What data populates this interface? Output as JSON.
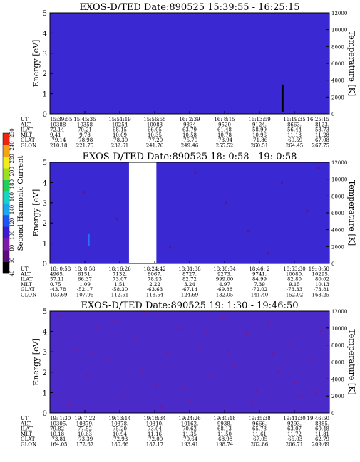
{
  "chart_data": [
    {
      "type": "heatmap",
      "title": "EXOS-D/TED   Date:890525  15:39:55 - 16:25:15",
      "ylabel": "Energy [eV]",
      "ylabel_right": "Temperature [K]",
      "ylim": [
        0,
        5
      ],
      "ylim_right": [
        0,
        12000
      ],
      "yticks": [
        "0",
        "1",
        "2",
        "3",
        "4",
        "5"
      ],
      "yticks_right": [
        "0",
        "2000",
        "4000",
        "6000",
        "8000",
        "10000",
        "12000"
      ],
      "background_color": "#3a28d2",
      "speckle_color": "#5a1690",
      "speckles": [],
      "features": [
        {
          "x0": 0.829,
          "x1": 0.836,
          "y0": 0.1,
          "y1": 1.45,
          "color": "#000000"
        }
      ],
      "gap": null,
      "orbit_table": {
        "labels": [
          "UT",
          "ALT",
          "ILAT",
          "MLT",
          "GLAT",
          "GLON"
        ],
        "rows": [
          [
            "15:39:55",
            "15:45:35",
            "15:51:19",
            "15:56:55",
            "16: 2:39",
            "16: 8:15",
            "16:13:59",
            "16:19:35",
            "16:25:15"
          ],
          [
            "10388",
            "10358",
            "10254",
            "10083",
            "9834",
            "9520",
            "9124.",
            "8663.",
            "8123."
          ],
          [
            "72.14",
            "70.21",
            "68.15",
            "66.05",
            "63.79",
            "61.48",
            "58.99",
            "56.44",
            "53.73"
          ],
          [
            "9.41",
            "9.78",
            "10.09",
            "10.35",
            "10.58",
            "10.78",
            "10.96",
            "11.13",
            "11.28"
          ],
          [
            "-79.14",
            "-78.98",
            "-78.30",
            "-77.20",
            "-75.70",
            "-73.94",
            "-71.86",
            "-69.59",
            "-67.08"
          ],
          [
            "210.18",
            "221.75",
            "232.61",
            "241.76",
            "249.46",
            "255.52",
            "260.51",
            "264.45",
            "267.75"
          ]
        ]
      }
    },
    {
      "type": "heatmap",
      "title": "EXOS-D/TED   Date:890525  18: 0:58 - 19: 0:58",
      "ylabel": "Energy [eV]",
      "ylabel_right": "Temperature [K]",
      "ylim": [
        0,
        5
      ],
      "ylim_right": [
        0,
        12000
      ],
      "yticks": [
        "0",
        "1",
        "2",
        "3",
        "4",
        "5"
      ],
      "yticks_right": [
        "0",
        "2000",
        "4000",
        "6000",
        "8000",
        "10000",
        "12000"
      ],
      "background_color": "#3a28d2",
      "speckle_color": "#5a1690",
      "speckles": [
        [
          0.12,
          3.5
        ],
        [
          0.24,
          2.2
        ],
        [
          0.52,
          4.5
        ],
        [
          0.63,
          3.0
        ],
        [
          0.71,
          1.6
        ],
        [
          0.83,
          4.0
        ],
        [
          0.92,
          2.6
        ],
        [
          0.43,
          0.8
        ],
        [
          0.78,
          0.5
        ],
        [
          0.96,
          4.7
        ]
      ],
      "features": [
        {
          "x0": 0.137,
          "x1": 0.142,
          "y0": 0.85,
          "y1": 1.45,
          "color": "#2f6cff"
        }
      ],
      "gap": {
        "x0": 0.283,
        "x1": 0.381
      },
      "orbit_table": {
        "labels": [
          "UT",
          "ALT",
          "ILAT",
          "MLT",
          "GLAT",
          "GLON"
        ],
        "rows": [
          [
            "18: 0:58",
            "18: 8:58",
            "18:16:26",
            "18:24:42",
            "18:31:38",
            "18:38:54",
            "18:46: 2",
            "18:53:30",
            "19: 0:58"
          ],
          [
            "4965.",
            "6151.",
            "7132.",
            "8067.",
            "8727.",
            "9273.",
            "9741.",
            "10080.",
            "10295."
          ],
          [
            "57.11",
            "66.37",
            "73.07",
            "78.93",
            "82.72",
            "999.00",
            "84.99",
            "82.80",
            "80.02"
          ],
          [
            "0.75",
            "1.09",
            "1.51",
            "2.22",
            "3.24",
            "4.97",
            "7.39",
            "9.15",
            "10.13"
          ],
          [
            "-43.78",
            "-52.17",
            "-58.30",
            "-63.63",
            "-67.14",
            "-69.88",
            "-72.02",
            "-73.33",
            "-73.81"
          ],
          [
            "103.69",
            "107.96",
            "112.51",
            "118.54",
            "124.69",
            "132.05",
            "141.40",
            "152.02",
            "163.25"
          ]
        ]
      },
      "colorbar": {
        "label": "Second Harmonic Current",
        "ticks": [
          "40",
          "60",
          "80",
          "100",
          "120",
          "140",
          "160",
          "180",
          "200",
          "220",
          "240",
          "250"
        ],
        "colors": [
          "#000000",
          "#5a0a7a",
          "#7e1aa8",
          "#3c1ccf",
          "#1d56f5",
          "#1aa7f0",
          "#16d4c4",
          "#1ecf5a",
          "#9ae01c",
          "#f2ec1a",
          "#f5a316",
          "#ee2410"
        ]
      }
    },
    {
      "type": "heatmap",
      "title": "EXOS-D/TED   Date:890525  19: 1:30 - 19:46:50",
      "ylabel": "Energy [eV]",
      "ylabel_right": "Temperature [K]",
      "ylim": [
        0,
        5
      ],
      "ylim_right": [
        0,
        12000
      ],
      "yticks": [
        "0",
        "1",
        "2",
        "3",
        "4",
        "5"
      ],
      "yticks_right": [
        "0",
        "2000",
        "4000",
        "6000",
        "8000",
        "10000",
        "12000"
      ],
      "background_color": "#4a2ac8",
      "speckle_color": "#7a1a8c",
      "speckles": [
        [
          0.04,
          4.8
        ],
        [
          0.09,
          3.1
        ],
        [
          0.13,
          1.9
        ],
        [
          0.17,
          4.2
        ],
        [
          0.21,
          2.6
        ],
        [
          0.26,
          0.9
        ],
        [
          0.3,
          3.7
        ],
        [
          0.34,
          4.9
        ],
        [
          0.38,
          1.4
        ],
        [
          0.42,
          2.9
        ],
        [
          0.46,
          4.1
        ],
        [
          0.5,
          0.6
        ],
        [
          0.54,
          3.3
        ],
        [
          0.58,
          1.8
        ],
        [
          0.62,
          4.6
        ],
        [
          0.66,
          2.3
        ],
        [
          0.7,
          3.9
        ],
        [
          0.74,
          1.1
        ],
        [
          0.78,
          4.4
        ],
        [
          0.82,
          2.0
        ],
        [
          0.86,
          3.5
        ],
        [
          0.9,
          0.8
        ],
        [
          0.94,
          2.7
        ],
        [
          0.97,
          4.0
        ],
        [
          0.07,
          0.4
        ],
        [
          0.23,
          4.5
        ],
        [
          0.4,
          0.3
        ],
        [
          0.56,
          4.0
        ],
        [
          0.72,
          0.5
        ],
        [
          0.88,
          1.5
        ],
        [
          0.15,
          3.0
        ],
        [
          0.48,
          1.2
        ],
        [
          0.64,
          3.0
        ],
        [
          0.8,
          2.9
        ],
        [
          0.33,
          2.1
        ],
        [
          0.95,
          1.0
        ]
      ],
      "features": [],
      "gap": null,
      "orbit_table": {
        "labels": [
          "UT",
          "ALT",
          "ILAT",
          "MLT",
          "GLAT",
          "GLON"
        ],
        "rows": [
          [
            "19: 1:30",
            "19: 7:22",
            "19:13:14",
            "19:18:34",
            "19:24:26",
            "19:30:18",
            "19:35:38",
            "19:41:30",
            "19:46:50"
          ],
          [
            "10305.",
            "10379.",
            "10378.",
            "10310.",
            "10162.",
            "9938.",
            "9666.",
            "9293.",
            "8885."
          ],
          [
            "79.82",
            "77.52",
            "75.20",
            "73.04",
            "70.62",
            "68.13",
            "65.78",
            "63.07",
            "60.48"
          ],
          [
            "10.18",
            "10.63",
            "10.94",
            "11.16",
            "11.35",
            "11.50",
            "11.61",
            "11.72",
            "11.81"
          ],
          [
            "-73.81",
            "-73.39",
            "-72.93",
            "-72.00",
            "-70.64",
            "-68.98",
            "-67.05",
            "-65.03",
            "-62.79"
          ],
          [
            "164.05",
            "172.67",
            "180.66",
            "187.17",
            "193.41",
            "198.74",
            "202.86",
            "206.71",
            "209.69"
          ]
        ]
      }
    }
  ]
}
